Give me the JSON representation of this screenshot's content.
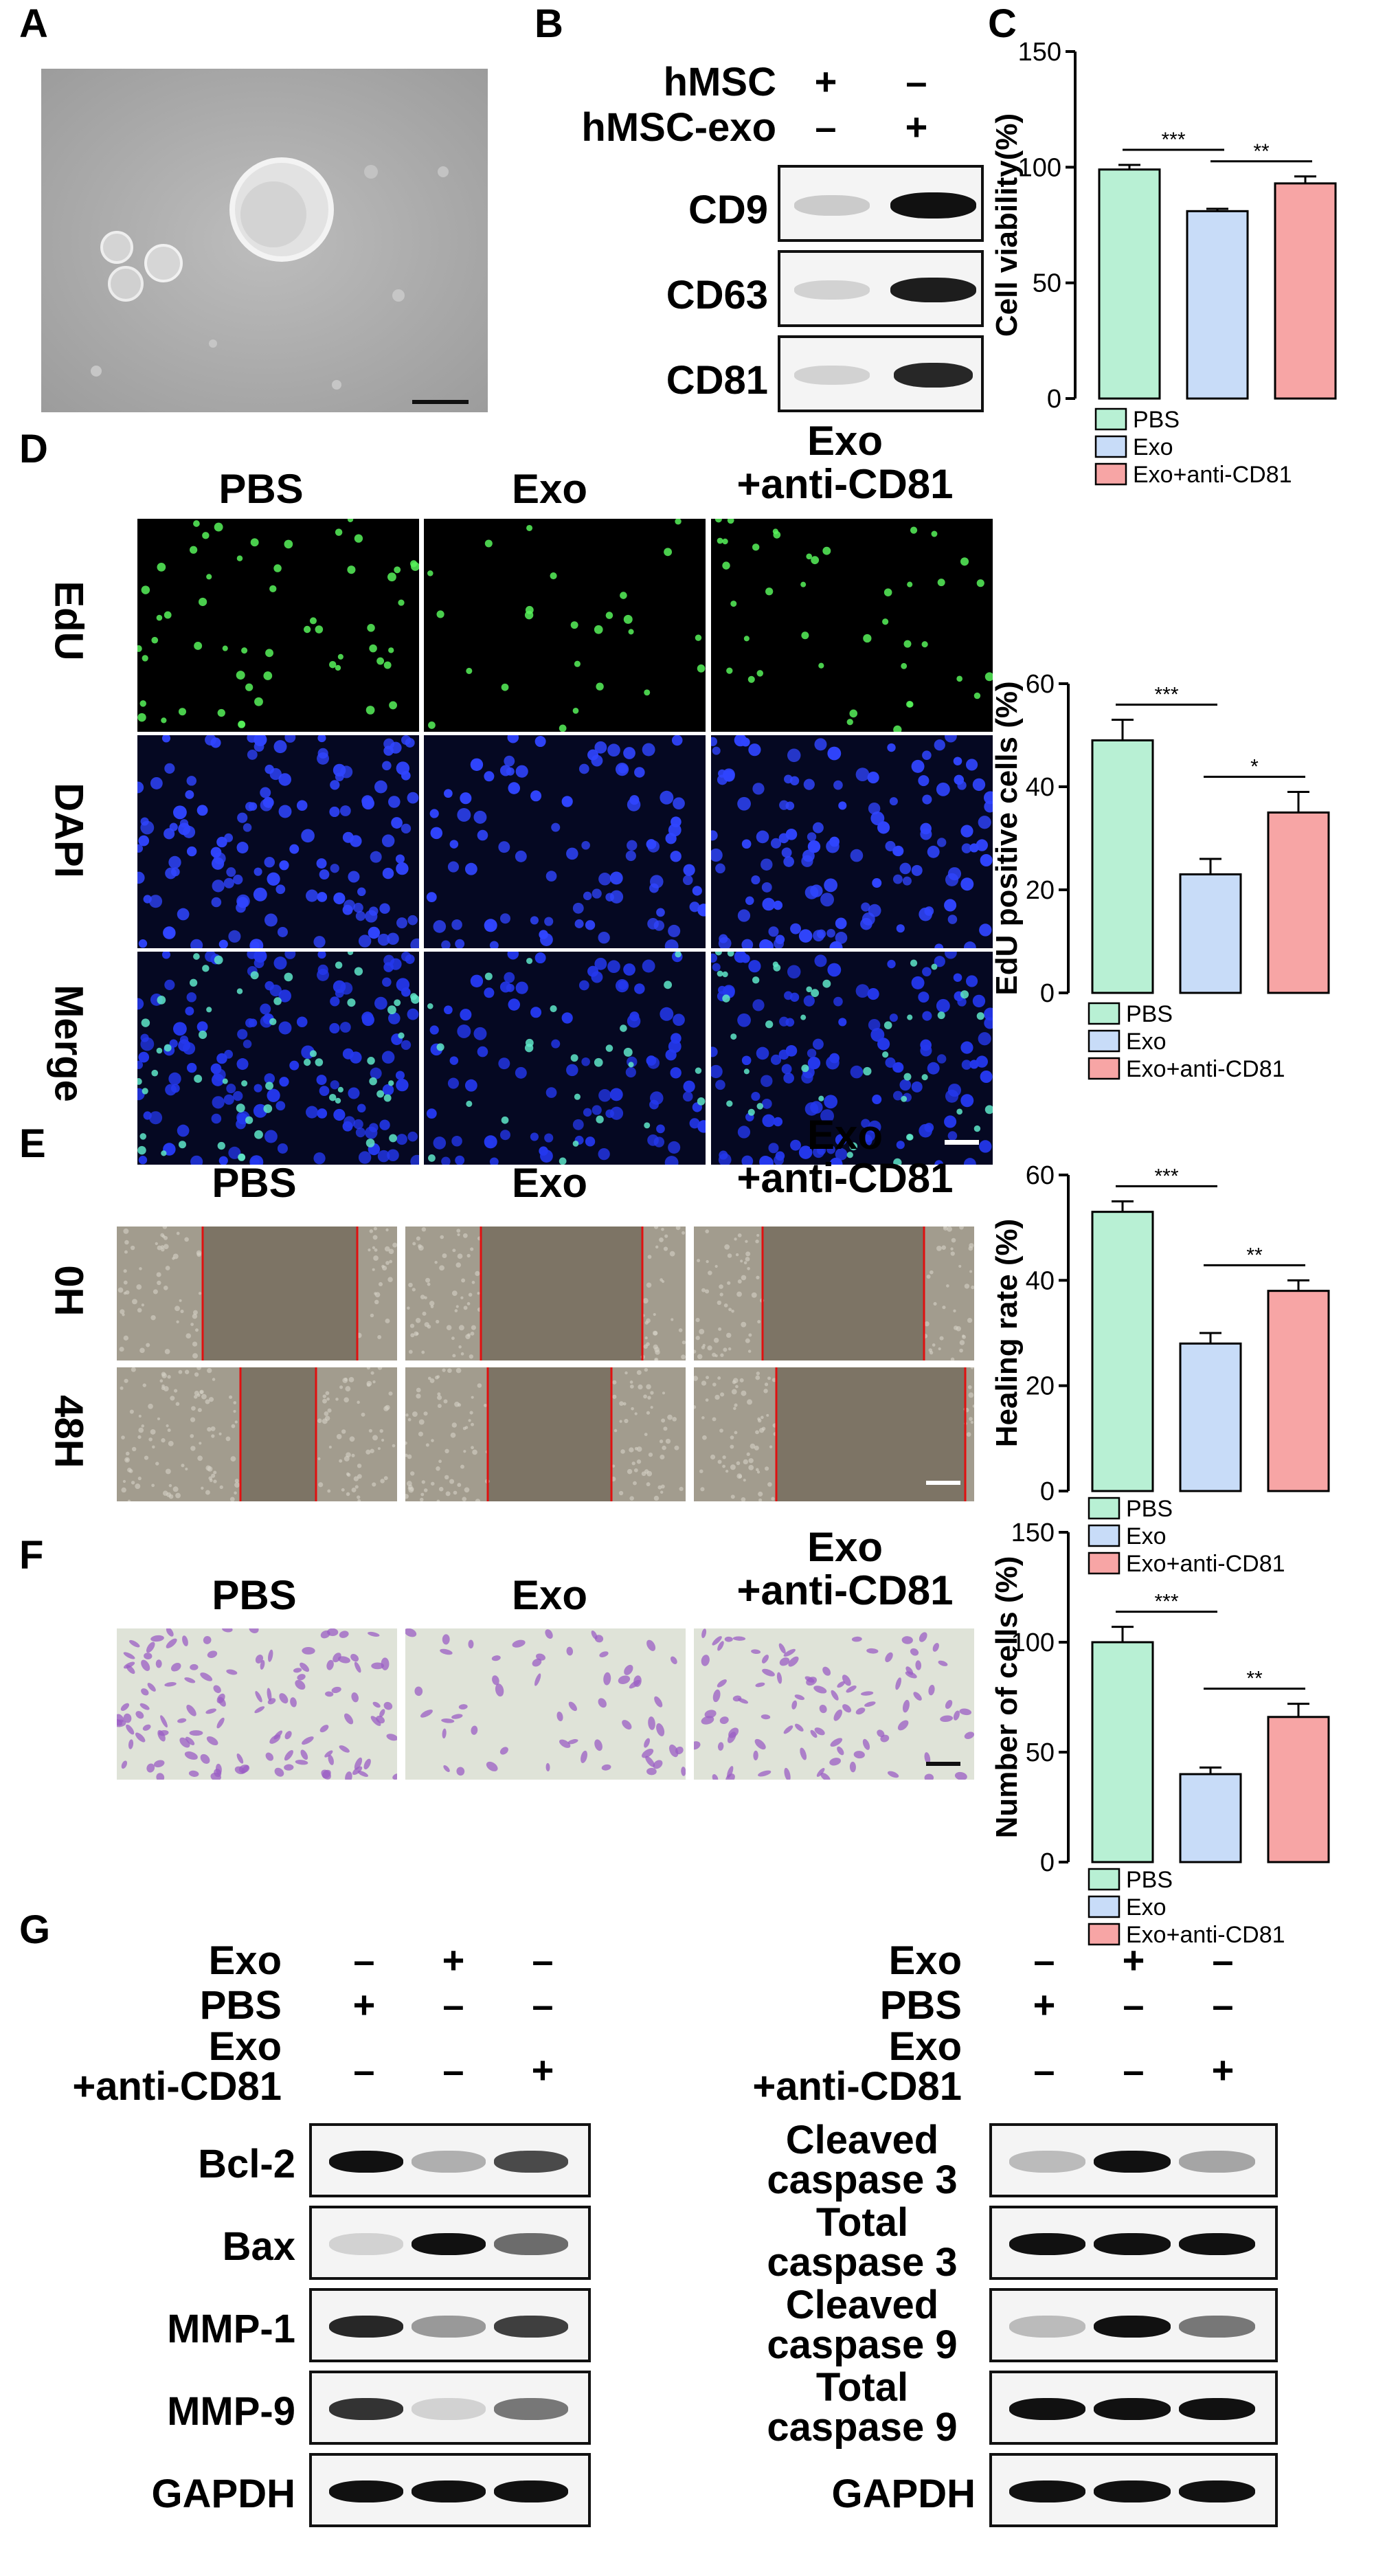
{
  "panel_letters": {
    "A": "A",
    "B": "B",
    "C": "C",
    "D": "D",
    "E": "E",
    "F": "F",
    "G": "G"
  },
  "group_headers": {
    "pbs": "PBS",
    "exo": "Exo",
    "exo_anti_1": "Exo",
    "exo_anti_2": "+anti-CD81"
  },
  "panel_b": {
    "row1_label": "hMSC",
    "row2_label": "hMSC-exo",
    "signs_row1": [
      "+",
      "–"
    ],
    "signs_row2": [
      "–",
      "+"
    ],
    "blots": [
      "CD9",
      "CD63",
      "CD81"
    ],
    "band_intensity": {
      "CD9": [
        0.18,
        1.0
      ],
      "CD63": [
        0.15,
        0.95
      ],
      "CD81": [
        0.15,
        0.9
      ]
    }
  },
  "panel_d": {
    "rows": [
      "EdU",
      "DAPI",
      "Merge"
    ],
    "colors": {
      "edu": "#5cf25c",
      "dapi": "#2a3cff"
    }
  },
  "panel_e": {
    "rows": [
      "0H",
      "48H"
    ]
  },
  "panel_g_left": {
    "conditions": [
      {
        "label": "Exo",
        "signs": [
          "–",
          "+",
          "–"
        ]
      },
      {
        "label": "PBS",
        "signs": [
          "+",
          "–",
          "–"
        ]
      },
      {
        "label1": "Exo",
        "label2": "+anti-CD81",
        "signs": [
          "–",
          "–",
          "+"
        ]
      }
    ],
    "blots": [
      {
        "label": "Bcl-2",
        "intensity": [
          1.0,
          0.3,
          0.75
        ]
      },
      {
        "label": "Bax",
        "intensity": [
          0.15,
          1.0,
          0.6
        ]
      },
      {
        "label": "MMP-1",
        "intensity": [
          0.9,
          0.4,
          0.8
        ]
      },
      {
        "label": "MMP-9",
        "intensity": [
          0.85,
          0.15,
          0.55
        ]
      },
      {
        "label": "GAPDH",
        "intensity": [
          1.0,
          1.0,
          1.0
        ]
      }
    ]
  },
  "panel_g_right": {
    "conditions": [
      {
        "label": "Exo",
        "signs": [
          "–",
          "+",
          "–"
        ]
      },
      {
        "label": "PBS",
        "signs": [
          "+",
          "–",
          "–"
        ]
      },
      {
        "label1": "Exo",
        "label2": "+anti-CD81",
        "signs": [
          "–",
          "–",
          "+"
        ]
      }
    ],
    "blots": [
      {
        "label1": "Cleaved",
        "label2": "caspase 3",
        "intensity": [
          0.25,
          1.0,
          0.35
        ]
      },
      {
        "label1": "Total",
        "label2": "caspase 3",
        "intensity": [
          1.0,
          1.0,
          1.0
        ]
      },
      {
        "label1": "Cleaved",
        "label2": "caspase 9",
        "intensity": [
          0.25,
          1.0,
          0.55
        ]
      },
      {
        "label1": "Total",
        "label2": "caspase 9",
        "intensity": [
          1.0,
          1.0,
          1.0
        ]
      },
      {
        "label": "GAPDH",
        "intensity": [
          1.0,
          1.0,
          1.0
        ]
      }
    ]
  },
  "legend": [
    "PBS",
    "Exo",
    "Exo+anti-CD81"
  ],
  "colors": {
    "PBS": "#b8f0d4",
    "Exo": "#c8dcf8",
    "Exo+anti-CD81": "#f7a5a5"
  },
  "chart_data": [
    {
      "type": "bar",
      "panel": "C",
      "ylabel": "Cell viability(%)",
      "ylim": [
        0,
        150
      ],
      "yticks": [
        0,
        50,
        100,
        150
      ],
      "categories": [
        "PBS",
        "Exo",
        "Exo+anti-CD81"
      ],
      "values": [
        99,
        81,
        93
      ],
      "errors": [
        2,
        1,
        3
      ],
      "significance": [
        {
          "from": 0,
          "to": 1,
          "label": "***"
        },
        {
          "from": 1,
          "to": 2,
          "label": "**"
        }
      ]
    },
    {
      "type": "bar",
      "panel": "D",
      "ylabel": "EdU positive cells (%)",
      "ylim": [
        0,
        60
      ],
      "yticks": [
        0,
        20,
        40,
        60
      ],
      "categories": [
        "PBS",
        "Exo",
        "Exo+anti-CD81"
      ],
      "values": [
        49,
        23,
        35
      ],
      "errors": [
        4,
        3,
        4
      ],
      "significance": [
        {
          "from": 0,
          "to": 1,
          "label": "***"
        },
        {
          "from": 1,
          "to": 2,
          "label": "*"
        }
      ]
    },
    {
      "type": "bar",
      "panel": "E",
      "ylabel": "Healing rate (%)",
      "ylim": [
        0,
        60
      ],
      "yticks": [
        0,
        20,
        40,
        60
      ],
      "categories": [
        "PBS",
        "Exo",
        "Exo+anti-CD81"
      ],
      "values": [
        53,
        28,
        38
      ],
      "errors": [
        2,
        2,
        2
      ],
      "significance": [
        {
          "from": 0,
          "to": 1,
          "label": "***"
        },
        {
          "from": 1,
          "to": 2,
          "label": "**"
        }
      ]
    },
    {
      "type": "bar",
      "panel": "F",
      "ylabel": "Number of cells (%)",
      "ylim": [
        0,
        150
      ],
      "yticks": [
        0,
        50,
        100,
        150
      ],
      "categories": [
        "PBS",
        "Exo",
        "Exo+anti-CD81"
      ],
      "values": [
        100,
        40,
        66
      ],
      "errors": [
        7,
        3,
        6
      ],
      "significance": [
        {
          "from": 0,
          "to": 1,
          "label": "***"
        },
        {
          "from": 1,
          "to": 2,
          "label": "**"
        }
      ]
    }
  ]
}
